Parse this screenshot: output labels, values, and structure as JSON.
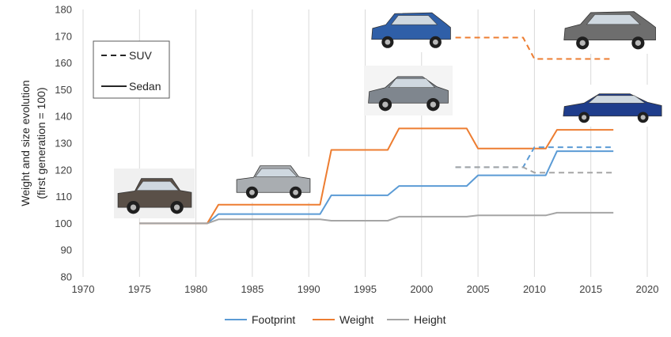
{
  "chart_data": {
    "type": "line",
    "ylabel": "Weight and size evolution",
    "ylabel_sub": "(first generation = 100)",
    "xlim": [
      1970,
      2020
    ],
    "ylim": [
      80,
      180
    ],
    "x_ticks": [
      "1970",
      "1975",
      "1980",
      "1985",
      "1990",
      "1995",
      "2000",
      "2005",
      "2010",
      "2015",
      "2020"
    ],
    "y_ticks": [
      "80",
      "90",
      "100",
      "110",
      "120",
      "130",
      "140",
      "150",
      "160",
      "170",
      "180"
    ],
    "grid": "vertical",
    "legend_position": "bottom",
    "series": [
      {
        "name": "Footprint",
        "color": "#5b9bd5",
        "style": "solid",
        "points": [
          [
            1975,
            100
          ],
          [
            1981,
            100
          ],
          [
            1982,
            103.5
          ],
          [
            1991,
            103.5
          ],
          [
            1992,
            110.5
          ],
          [
            1997,
            110.5
          ],
          [
            1998,
            114
          ],
          [
            2004,
            114
          ],
          [
            2005,
            118
          ],
          [
            2011,
            118
          ],
          [
            2012,
            127
          ],
          [
            2017,
            127
          ]
        ]
      },
      {
        "name": "Weight",
        "color": "#ed7d31",
        "style": "solid",
        "points": [
          [
            1975,
            100
          ],
          [
            1981,
            100
          ],
          [
            1982,
            107
          ],
          [
            1991,
            107
          ],
          [
            1992,
            127.5
          ],
          [
            1997,
            127.5
          ],
          [
            1998,
            135.5
          ],
          [
            2004,
            135.5
          ],
          [
            2005,
            128
          ],
          [
            2011,
            128
          ],
          [
            2012,
            135
          ],
          [
            2017,
            135
          ]
        ]
      },
      {
        "name": "Height",
        "color": "#a5a5a5",
        "style": "solid",
        "points": [
          [
            1975,
            100
          ],
          [
            1981,
            100
          ],
          [
            1982,
            101.5
          ],
          [
            1991,
            101.5
          ],
          [
            1992,
            101
          ],
          [
            1997,
            101
          ],
          [
            1998,
            102.5
          ],
          [
            2004,
            102.5
          ],
          [
            2005,
            103
          ],
          [
            2011,
            103
          ],
          [
            2012,
            104
          ],
          [
            2017,
            104
          ]
        ]
      },
      {
        "name": "Footprint",
        "color": "#5b9bd5",
        "style": "dashed",
        "points": [
          [
            2003,
            121
          ],
          [
            2009,
            121
          ],
          [
            2010,
            128.5
          ],
          [
            2017,
            128.5
          ]
        ]
      },
      {
        "name": "Weight",
        "color": "#ed7d31",
        "style": "dashed",
        "points": [
          [
            2003,
            169.5
          ],
          [
            2009,
            169.5
          ],
          [
            2010,
            161.5
          ],
          [
            2017,
            161.5
          ]
        ]
      },
      {
        "name": "Height",
        "color": "#a5a5a5",
        "style": "dashed",
        "points": [
          [
            2003,
            121
          ],
          [
            2009,
            121
          ],
          [
            2010,
            119
          ],
          [
            2017,
            119
          ]
        ]
      }
    ],
    "style_legend": [
      {
        "label": "SUV",
        "style": "dashed"
      },
      {
        "label": "Sedan",
        "style": "solid"
      }
    ],
    "legend": [
      {
        "label": "Footprint",
        "color": "#5b9bd5"
      },
      {
        "label": "Weight",
        "color": "#ed7d31"
      },
      {
        "label": "Height",
        "color": "#a5a5a5"
      }
    ]
  },
  "car_images": [
    {
      "name": "car-photo-1975-sedan",
      "body": "boxy sedan",
      "color": "#5a5048"
    },
    {
      "name": "car-photo-1982-sedan",
      "body": "boxy sedan",
      "color": "#a9adb1"
    },
    {
      "name": "car-photo-1998-sedan",
      "body": "sedan",
      "color": "#7f868e"
    },
    {
      "name": "car-photo-2012-sedan",
      "body": "sedan",
      "color": "#1f3d8c"
    },
    {
      "name": "car-photo-2003-suv",
      "body": "suv",
      "color": "#2f5fa8"
    },
    {
      "name": "car-photo-2010-suv",
      "body": "suv",
      "color": "#6e6e6e"
    }
  ]
}
